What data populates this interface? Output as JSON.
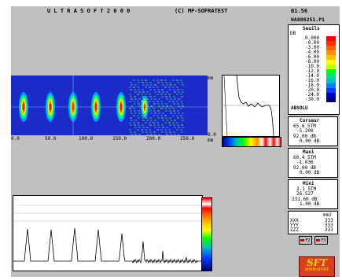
{
  "window": {
    "title": "U L T R A S O F T   2 0 0 0",
    "copyright": "(C) MP-SOFRATEST",
    "version": "B1.56",
    "file": "HA888251.P1"
  },
  "scale": {
    "title": "Seuils",
    "unit": "DB",
    "values": [
      "0.000",
      "-0.00",
      "-3.00",
      "-4.00",
      "-6.00",
      "-8.00",
      "-10.0",
      "-12.0",
      "-14.0",
      "-16.0",
      "-18.0",
      "-20.0",
      "-24.0",
      "-30.0"
    ],
    "colors": [
      "#ff0000",
      "#ff3000",
      "#ff6000",
      "#ff9000",
      "#ffc000",
      "#ffff00",
      "#c0ff00",
      "#00ff00",
      "#00e080",
      "#00c0c0",
      "#0080ff",
      "#0040ff",
      "#0000c0",
      "#000080"
    ],
    "mode": "ABSOLU"
  },
  "cursor": {
    "label": "Curseur",
    "x_value": "65.6 5TM",
    "y_value": "-5.200",
    "a_value": "92.00 dB",
    "b_value": "0.00 dB"
  },
  "maxi": {
    "label": "Maxi",
    "x_value": "60.4 5TM",
    "y_value": "-1.036",
    "a_value": "92.00 dB",
    "b_value": "0.00 dB"
  },
  "mini": {
    "label": "Mini",
    "x_value": "2.1 5TM",
    "y_value": "26.527",
    "a_value": "231.60 dB",
    "b_value": "1.00 dB"
  },
  "stats": {
    "unit": "mm2",
    "rows": [
      {
        "label": "XXX",
        "value": "333"
      },
      {
        "label": "YYY",
        "value": "333"
      },
      {
        "label": "ZZZ",
        "value": "333"
      }
    ]
  },
  "buttons": {
    "b1": "F2",
    "b2": "F3"
  },
  "cscan": {
    "x_ticks": [
      "0.0",
      "50.0",
      "100.0",
      "150.0",
      "200.0",
      "250.0"
    ],
    "y_ticks_right": [
      "mm",
      "0.0",
      "mm"
    ]
  },
  "logo": {
    "main": "SFT",
    "sub": "SOFRATEST"
  },
  "colors": {
    "cscan_bg": "#1a2bc8",
    "app_bg": "#c0c0c0"
  }
}
